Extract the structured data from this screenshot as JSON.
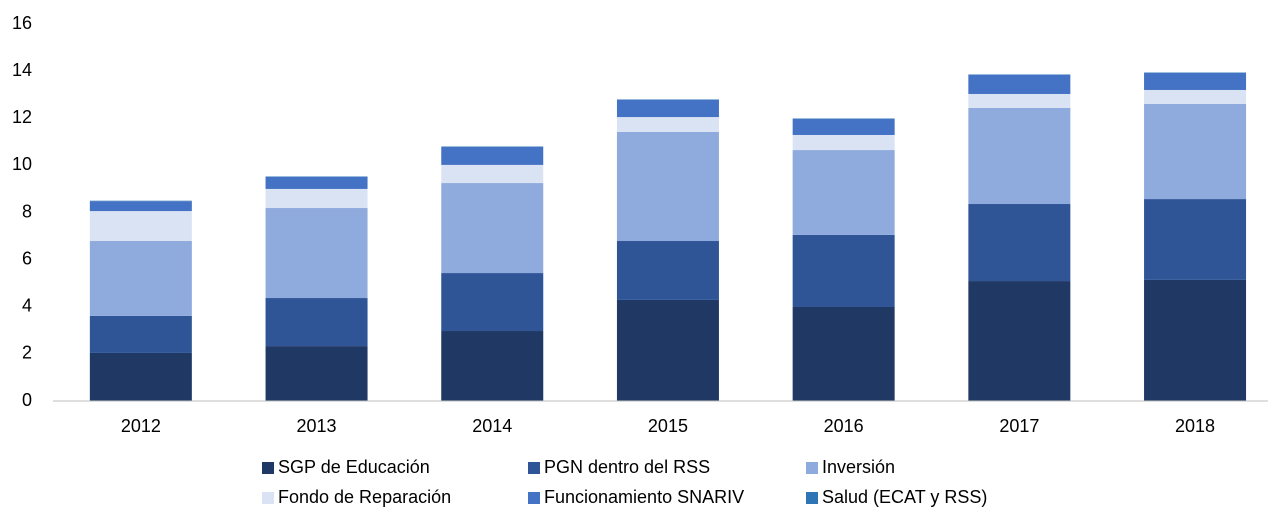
{
  "chart_data": {
    "type": "stacked_bar",
    "categories": [
      "2012",
      "2013",
      "2014",
      "2015",
      "2016",
      "2017",
      "2018"
    ],
    "series": [
      {
        "name": "SGP de Educación",
        "color": "#203864",
        "values": [
          2.04,
          2.33,
          2.97,
          4.29,
          3.99,
          5.09,
          5.14
        ]
      },
      {
        "name": "PGN dentro del RSS",
        "color": "#2f5597",
        "values": [
          1.57,
          2.04,
          2.46,
          2.5,
          3.06,
          3.27,
          3.43
        ]
      },
      {
        "name": "Inversión",
        "color": "#8faadc",
        "values": [
          3.18,
          3.82,
          3.82,
          4.63,
          3.6,
          4.08,
          4.04
        ]
      },
      {
        "name": "Fondo de Reparación",
        "color": "#dae3f3",
        "values": [
          1.27,
          0.81,
          0.77,
          0.63,
          0.64,
          0.59,
          0.59
        ]
      },
      {
        "name": "Funcionamiento SNARIV",
        "color": "#4472c4",
        "values": [
          0.42,
          0.51,
          0.76,
          0.73,
          0.68,
          0.81,
          0.72
        ]
      },
      {
        "name": "Salud (ECAT y RSS)",
        "color": "#2e75b6",
        "values": [
          0.02,
          0.02,
          0.02,
          0.02,
          0.02,
          0.02,
          0.02
        ]
      }
    ],
    "ylim": [
      0,
      16
    ],
    "yticks": [
      0,
      2,
      4,
      6,
      8,
      10,
      12,
      14,
      16
    ],
    "grid": false
  }
}
